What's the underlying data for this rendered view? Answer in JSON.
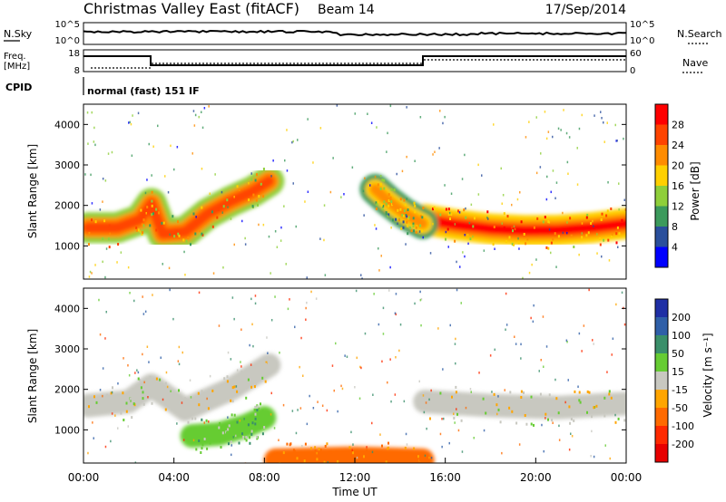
{
  "header": {
    "station": "Christmas Valley East (fitACF)",
    "beam": "Beam 14",
    "date": "17/Sep/2014"
  },
  "strip_labels": {
    "nsky": "N.Sky",
    "nsky_top": "10^5",
    "nsky_bot": "10^0",
    "nsearch": "N.Search",
    "nsearch_top": "10^5",
    "nsearch_bot": "10^0",
    "freq": "Freq.",
    "freq_unit": "[MHz]",
    "freq_top": "18",
    "freq_bot": "8",
    "nave": "Nave",
    "nave_top": "60",
    "nave_bot": "0",
    "cpid": "CPID",
    "cpid_value": "normal (fast) 151 IF"
  },
  "power_colorbar": {
    "label": "Power [dB]",
    "ticks": [
      "28",
      "24",
      "20",
      "16",
      "12",
      "8",
      "4"
    ],
    "colors": [
      "#ff0000",
      "#ff4400",
      "#ff8c00",
      "#ffd000",
      "#8fcf3a",
      "#3c9a5c",
      "#2a4f9c",
      "#0000ff"
    ]
  },
  "velocity_colorbar": {
    "label": "Velocity [m s⁻¹]",
    "ticks": [
      "200",
      "100",
      "50",
      "15",
      "-15",
      "-50",
      "-100",
      "-200"
    ],
    "colors": [
      "#1f2fa5",
      "#2f5fa8",
      "#3a8f6a",
      "#66cc33",
      "#c8c8c0",
      "#ffa500",
      "#ff6a00",
      "#ff2a00",
      "#e80000"
    ]
  },
  "chart_data": [
    {
      "type": "heatmap",
      "title": "",
      "xlabel": "",
      "ylabel": "Slant Range [km]",
      "ylim": [
        180,
        4500
      ],
      "y_ticks": [
        "1000",
        "2000",
        "3000",
        "4000"
      ],
      "x_ticks": [
        "00:00",
        "04:00",
        "08:00",
        "12:00",
        "16:00",
        "20:00",
        "00:00"
      ],
      "xlim_hours": [
        0,
        24
      ],
      "quantity": "Power [dB]",
      "bands": [
        {
          "name": "main_echo_early",
          "x": [
            0.2,
            1.5,
            2.5,
            3.0,
            3.5,
            4.5,
            5.5,
            6.5,
            7.5,
            8.2
          ],
          "y": [
            1450,
            1450,
            1650,
            2050,
            1300,
            1350,
            1800,
            2100,
            2350,
            2600
          ],
          "value": 26
        },
        {
          "name": "evening_echo",
          "x": [
            15.1,
            16.5,
            18.0,
            19.5,
            21.0,
            22.5,
            24.0
          ],
          "y": [
            1650,
            1520,
            1420,
            1380,
            1390,
            1450,
            1550
          ],
          "value": 28
        },
        {
          "name": "predawn_upper",
          "x": [
            12.9,
            13.5,
            14.2,
            15.0
          ],
          "y": [
            2400,
            2100,
            1800,
            1550
          ],
          "value": 22
        }
      ]
    },
    {
      "type": "heatmap",
      "title": "",
      "xlabel": "Time UT",
      "ylabel": "Slant Range [km]",
      "ylim": [
        180,
        4500
      ],
      "y_ticks": [
        "1000",
        "2000",
        "3000",
        "4000"
      ],
      "x_ticks": [
        "00:00",
        "04:00",
        "08:00",
        "12:00",
        "16:00",
        "20:00",
        "00:00"
      ],
      "xlim_hours": [
        0,
        24
      ],
      "quantity": "Velocity [m s^-1]",
      "bands": [
        {
          "name": "ground_scatter_early",
          "x": [
            0.2,
            2.0,
            3.0,
            4.5,
            6.5,
            8.2
          ],
          "y": [
            1600,
            1700,
            2100,
            1500,
            2000,
            2600
          ],
          "value": 0
        },
        {
          "name": "ionospheric_green",
          "x": [
            4.8,
            6.0,
            7.2,
            8.0
          ],
          "y": [
            850,
            900,
            1100,
            1300
          ],
          "value": 30
        },
        {
          "name": "ground_scatter_late",
          "x": [
            15.1,
            18.0,
            21.0,
            24.0
          ],
          "y": [
            1700,
            1600,
            1550,
            1650
          ],
          "value": 0
        },
        {
          "name": "near_range_orange",
          "x": [
            8.5,
            12.0,
            15.0
          ],
          "y": [
            250,
            300,
            250
          ],
          "value": -60
        }
      ]
    }
  ]
}
